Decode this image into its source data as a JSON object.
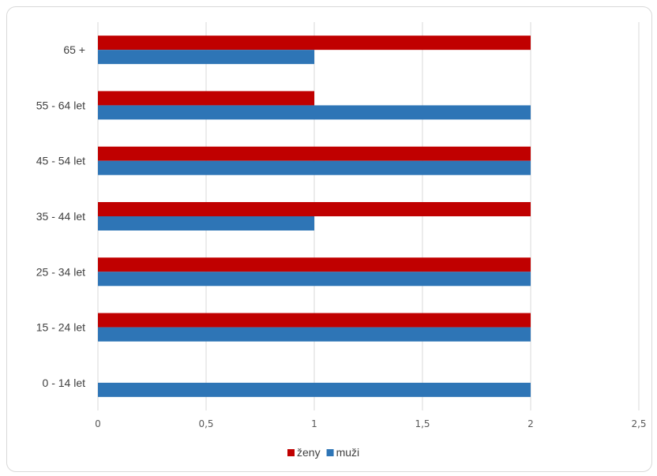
{
  "chart_data": {
    "type": "bar",
    "orientation": "horizontal",
    "categories": [
      "0 - 14 let",
      "15 - 24 let",
      "25 - 34 let",
      "35 - 44 let",
      "45 - 54 let",
      "55 - 64 let",
      "65 +"
    ],
    "series": [
      {
        "name": "ženy",
        "color": "#c00000",
        "values": [
          0,
          2,
          2,
          2,
          2,
          1,
          2
        ]
      },
      {
        "name": "muži",
        "color": "#2e75b6",
        "values": [
          2,
          2,
          2,
          1,
          2,
          2,
          1
        ]
      }
    ],
    "xlim": [
      0,
      2.5
    ],
    "xticks": [
      "0",
      "0,5",
      "1",
      "1,5",
      "2",
      "2,5"
    ],
    "grid": "vertical",
    "legend": "bottom"
  }
}
